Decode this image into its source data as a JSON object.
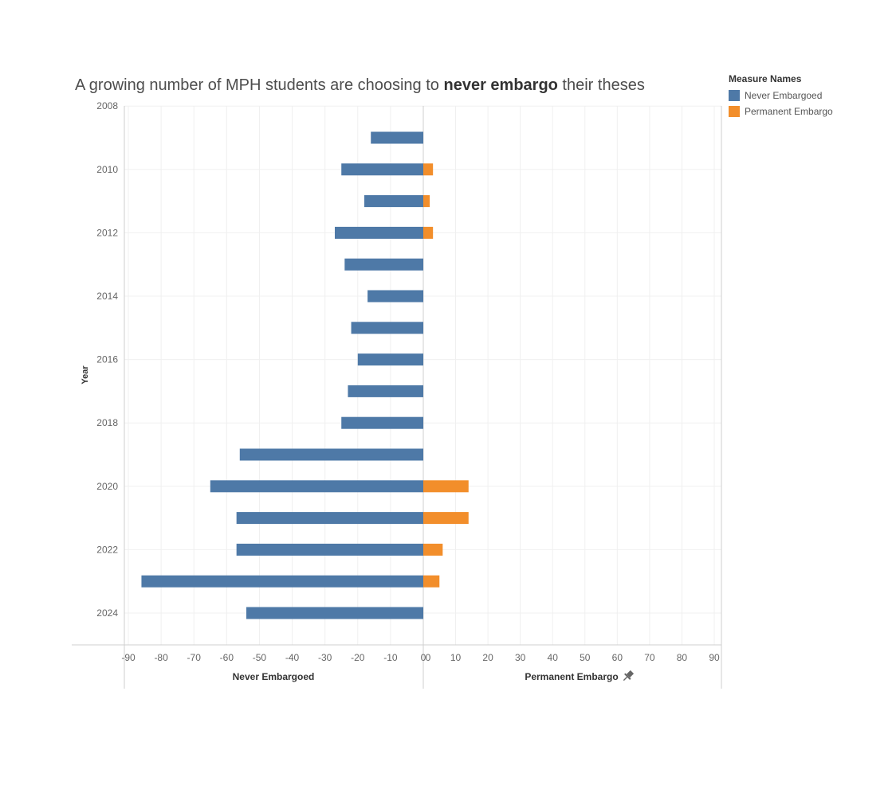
{
  "title": {
    "prefix": "A growing number of MPH students are choosing to ",
    "emphasis": "never embargo",
    "suffix": " their theses"
  },
  "legend": {
    "title": "Measure Names",
    "items": [
      {
        "label": "Never Embargoed",
        "color": "#4e79a7"
      },
      {
        "label": "Permanent Embargo",
        "color": "#f28e2b"
      }
    ]
  },
  "chart_data": {
    "type": "bar",
    "orientation": "horizontal-diverging",
    "ylabel": "Year",
    "y_tick_labels": [
      "2008",
      "2010",
      "2012",
      "2014",
      "2016",
      "2018",
      "2020",
      "2022",
      "2024"
    ],
    "categories": [
      "2009",
      "2010",
      "2011",
      "2012",
      "2013",
      "2014",
      "2015",
      "2016",
      "2017",
      "2018",
      "2019",
      "2020",
      "2021",
      "2022",
      "2023",
      "2024"
    ],
    "series": [
      {
        "name": "Never Embargoed",
        "color": "#4e79a7",
        "values": [
          16,
          25,
          18,
          27,
          24,
          17,
          22,
          20,
          23,
          25,
          56,
          65,
          57,
          57,
          86,
          54
        ]
      },
      {
        "name": "Permanent Embargo",
        "color": "#f28e2b",
        "values": [
          0,
          3,
          2,
          3,
          0,
          0,
          0,
          0,
          0,
          0,
          0,
          14,
          14,
          6,
          5,
          0
        ]
      }
    ],
    "left_axis": {
      "label": "Never Embargoed",
      "ticks": [
        "-90",
        "-80",
        "-70",
        "-60",
        "-50",
        "-40",
        "-30",
        "-20",
        "-10",
        "0"
      ]
    },
    "right_axis": {
      "label": "Permanent Embargo",
      "ticks": [
        "0",
        "10",
        "20",
        "30",
        "40",
        "50",
        "60",
        "70",
        "80",
        "90"
      ]
    },
    "xlim": [
      -90,
      90
    ],
    "ylim": [
      2008,
      2025
    ],
    "grid": true,
    "legend_position": "top-right"
  }
}
